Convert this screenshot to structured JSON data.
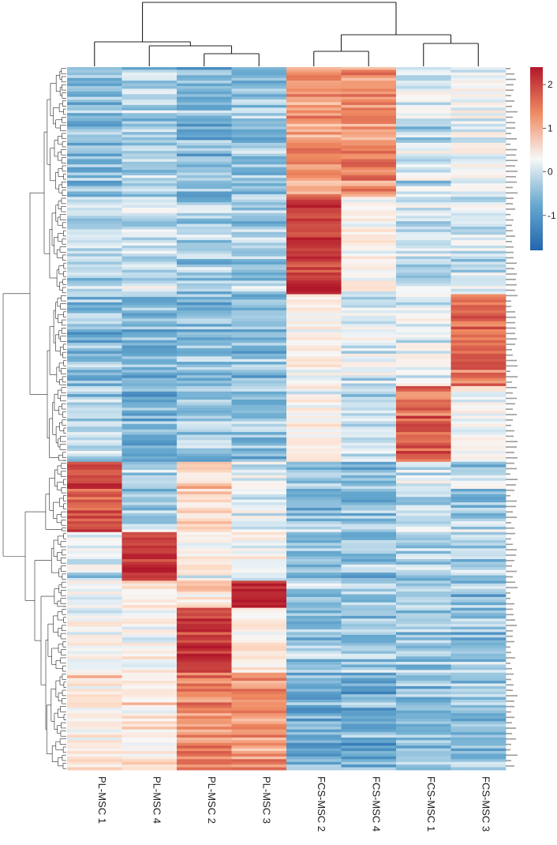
{
  "chart_data": {
    "type": "heatmap",
    "columns": [
      "PL-MSC 1",
      "PL-MSC 4",
      "PL-MSC 2",
      "PL-MSC 3",
      "FCS-MSC 2",
      "FCS-MSC 4",
      "FCS-MSC 1",
      "FCS-MSC 3"
    ],
    "value_range": [
      -1.8,
      2.4
    ],
    "legend": {
      "ticks": [
        2,
        1,
        0,
        -1
      ],
      "colors": {
        "low": "#2166ac",
        "mid": "#f7f7f7",
        "high": "#b2182b"
      },
      "placement": "top-right"
    },
    "row_count": 260,
    "row_groups": [
      {
        "rows": 48,
        "means": [
          -0.75,
          -0.55,
          -0.8,
          -0.7,
          1.1,
          1.2,
          -0.3,
          -0.1
        ]
      },
      {
        "rows": 36,
        "means": [
          -0.5,
          -0.35,
          -0.55,
          -0.6,
          2.0,
          0.1,
          -0.3,
          -0.2
        ]
      },
      {
        "rows": 34,
        "means": [
          -0.7,
          -0.8,
          -0.75,
          -0.7,
          0.2,
          -0.2,
          -0.1,
          1.5
        ]
      },
      {
        "rows": 28,
        "means": [
          -0.5,
          -0.9,
          -0.65,
          -0.7,
          0.1,
          -0.4,
          1.6,
          0.0
        ]
      },
      {
        "rows": 26,
        "means": [
          1.8,
          -0.5,
          0.5,
          -0.1,
          -0.7,
          -0.7,
          -0.3,
          -0.5
        ]
      },
      {
        "rows": 18,
        "means": [
          -0.3,
          2.0,
          0.1,
          0.0,
          -0.8,
          -0.7,
          -0.6,
          -0.6
        ]
      },
      {
        "rows": 10,
        "means": [
          0.0,
          0.2,
          0.4,
          2.2,
          -0.6,
          -0.7,
          -0.6,
          -0.7
        ]
      },
      {
        "rows": 24,
        "means": [
          0.1,
          0.1,
          2.0,
          0.3,
          -0.6,
          -0.6,
          -0.6,
          -0.6
        ]
      },
      {
        "rows": 36,
        "means": [
          0.4,
          0.3,
          1.3,
          1.2,
          -0.9,
          -0.9,
          -0.7,
          -0.7
        ]
      }
    ],
    "column_dendrogram": "((PL-MSC 1,(PL-MSC 4,(PL-MSC 2,PL-MSC 3))),((FCS-MSC 2,FCS-MSC 4),(FCS-MSC 1,FCS-MSC 3)))",
    "title": "",
    "xlabel": "",
    "ylabel": ""
  }
}
